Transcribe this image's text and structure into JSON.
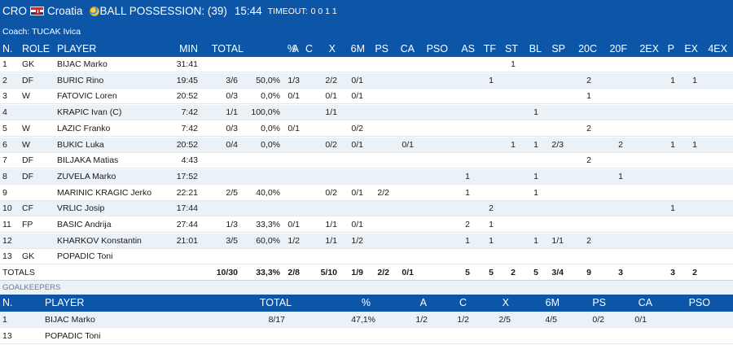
{
  "topbar": {
    "team_code": "CRO",
    "team_name": "Croatia",
    "possession_label": "BALL POSSESSION: (39)",
    "clock": "15:44",
    "timeout_label": "TIMEOUT:",
    "timeout_values": "0 0 1 1",
    "flag_icon": "croatia-flag-icon",
    "ball_icon": "ball-icon"
  },
  "coach": "Coach: TUCAK Ivica",
  "columns": [
    "N.",
    "ROLE",
    "PLAYER",
    "MIN",
    "TOTAL",
    "%",
    "A",
    "C",
    "X",
    "6M",
    "PS",
    "CA",
    "PSO",
    "AS",
    "TF",
    "ST",
    "BL",
    "SP",
    "20C",
    "20F",
    "2EX",
    "P",
    "EX",
    "4EX"
  ],
  "players": [
    {
      "n": "1",
      "role": "GK",
      "name": "BIJAC Marko",
      "min": "31:41",
      "total": "",
      "pct": "",
      "a": "",
      "c": "",
      "x": "",
      "m6": "",
      "ps": "",
      "ca": "",
      "pso": "",
      "as": "",
      "tf": "",
      "st": "1",
      "bl": "",
      "sp": "",
      "c20": "",
      "f20": "",
      "ex2": "",
      "p": "",
      "ex": "",
      "ex4": ""
    },
    {
      "n": "2",
      "role": "DF",
      "name": "BURIC Rino",
      "min": "19:45",
      "total": "3/6",
      "pct": "50,0%",
      "a": "1/3",
      "c": "",
      "x": "2/2",
      "m6": "0/1",
      "ps": "",
      "ca": "",
      "pso": "",
      "as": "",
      "tf": "1",
      "st": "",
      "bl": "",
      "sp": "",
      "c20": "2",
      "f20": "",
      "ex2": "",
      "p": "1",
      "ex": "1",
      "ex4": ""
    },
    {
      "n": "3",
      "role": "W",
      "name": "FATOVIC Loren",
      "min": "20:52",
      "total": "0/3",
      "pct": "0,0%",
      "a": "0/1",
      "c": "",
      "x": "0/1",
      "m6": "0/1",
      "ps": "",
      "ca": "",
      "pso": "",
      "as": "",
      "tf": "",
      "st": "",
      "bl": "",
      "sp": "",
      "c20": "1",
      "f20": "",
      "ex2": "",
      "p": "",
      "ex": "",
      "ex4": ""
    },
    {
      "n": "4",
      "role": "",
      "name": "KRAPIC Ivan (C)",
      "min": "7:42",
      "total": "1/1",
      "pct": "100,0%",
      "a": "",
      "c": "",
      "x": "1/1",
      "m6": "",
      "ps": "",
      "ca": "",
      "pso": "",
      "as": "",
      "tf": "",
      "st": "",
      "bl": "1",
      "sp": "",
      "c20": "",
      "f20": "",
      "ex2": "",
      "p": "",
      "ex": "",
      "ex4": ""
    },
    {
      "n": "5",
      "role": "W",
      "name": "LAZIC Franko",
      "min": "7:42",
      "total": "0/3",
      "pct": "0,0%",
      "a": "0/1",
      "c": "",
      "x": "",
      "m6": "0/2",
      "ps": "",
      "ca": "",
      "pso": "",
      "as": "",
      "tf": "",
      "st": "",
      "bl": "",
      "sp": "",
      "c20": "2",
      "f20": "",
      "ex2": "",
      "p": "",
      "ex": "",
      "ex4": ""
    },
    {
      "n": "6",
      "role": "W",
      "name": "BUKIC Luka",
      "min": "20:52",
      "total": "0/4",
      "pct": "0,0%",
      "a": "",
      "c": "",
      "x": "0/2",
      "m6": "0/1",
      "ps": "",
      "ca": "0/1",
      "pso": "",
      "as": "",
      "tf": "",
      "st": "1",
      "bl": "1",
      "sp": "2/3",
      "c20": "",
      "f20": "2",
      "ex2": "",
      "p": "1",
      "ex": "1",
      "ex4": ""
    },
    {
      "n": "7",
      "role": "DF",
      "name": "BILJAKA Matias",
      "min": "4:43",
      "total": "",
      "pct": "",
      "a": "",
      "c": "",
      "x": "",
      "m6": "",
      "ps": "",
      "ca": "",
      "pso": "",
      "as": "",
      "tf": "",
      "st": "",
      "bl": "",
      "sp": "",
      "c20": "2",
      "f20": "",
      "ex2": "",
      "p": "",
      "ex": "",
      "ex4": ""
    },
    {
      "n": "8",
      "role": "DF",
      "name": "ZUVELA Marko",
      "min": "17:52",
      "total": "",
      "pct": "",
      "a": "",
      "c": "",
      "x": "",
      "m6": "",
      "ps": "",
      "ca": "",
      "pso": "",
      "as": "1",
      "tf": "",
      "st": "",
      "bl": "1",
      "sp": "",
      "c20": "",
      "f20": "1",
      "ex2": "",
      "p": "",
      "ex": "",
      "ex4": ""
    },
    {
      "n": "9",
      "role": "",
      "name": "MARINIC KRAGIC Jerko",
      "min": "22:21",
      "total": "2/5",
      "pct": "40,0%",
      "a": "",
      "c": "",
      "x": "0/2",
      "m6": "0/1",
      "ps": "2/2",
      "ca": "",
      "pso": "",
      "as": "1",
      "tf": "",
      "st": "",
      "bl": "1",
      "sp": "",
      "c20": "",
      "f20": "",
      "ex2": "",
      "p": "",
      "ex": "",
      "ex4": ""
    },
    {
      "n": "10",
      "role": "CF",
      "name": "VRLIC Josip",
      "min": "17:44",
      "total": "",
      "pct": "",
      "a": "",
      "c": "",
      "x": "",
      "m6": "",
      "ps": "",
      "ca": "",
      "pso": "",
      "as": "",
      "tf": "2",
      "st": "",
      "bl": "",
      "sp": "",
      "c20": "",
      "f20": "",
      "ex2": "",
      "p": "1",
      "ex": "",
      "ex4": ""
    },
    {
      "n": "11",
      "role": "FP",
      "name": "BASIC Andrija",
      "min": "27:44",
      "total": "1/3",
      "pct": "33,3%",
      "a": "0/1",
      "c": "",
      "x": "1/1",
      "m6": "0/1",
      "ps": "",
      "ca": "",
      "pso": "",
      "as": "2",
      "tf": "1",
      "st": "",
      "bl": "",
      "sp": "",
      "c20": "",
      "f20": "",
      "ex2": "",
      "p": "",
      "ex": "",
      "ex4": ""
    },
    {
      "n": "12",
      "role": "",
      "name": "KHARKOV Konstantin",
      "min": "21:01",
      "total": "3/5",
      "pct": "60,0%",
      "a": "1/2",
      "c": "",
      "x": "1/1",
      "m6": "1/2",
      "ps": "",
      "ca": "",
      "pso": "",
      "as": "1",
      "tf": "1",
      "st": "",
      "bl": "1",
      "sp": "1/1",
      "c20": "2",
      "f20": "",
      "ex2": "",
      "p": "",
      "ex": "",
      "ex4": ""
    },
    {
      "n": "13",
      "role": "GK",
      "name": "POPADIC Toni",
      "min": "",
      "total": "",
      "pct": "",
      "a": "",
      "c": "",
      "x": "",
      "m6": "",
      "ps": "",
      "ca": "",
      "pso": "",
      "as": "",
      "tf": "",
      "st": "",
      "bl": "",
      "sp": "",
      "c20": "",
      "f20": "",
      "ex2": "",
      "p": "",
      "ex": "",
      "ex4": ""
    }
  ],
  "totals": {
    "label": "TOTALS",
    "total": "10/30",
    "pct": "33,3%",
    "a": "2/8",
    "x": "5/10",
    "m6": "1/9",
    "ps": "2/2",
    "ca": "0/1",
    "as": "5",
    "tf": "5",
    "st": "2",
    "bl": "5",
    "sp": "3/4",
    "c20": "9",
    "f20": "3",
    "p": "3",
    "ex": "2"
  },
  "goalkeepers": {
    "title": "GOALKEEPERS",
    "columns": [
      "N.",
      "PLAYER",
      "TOTAL",
      "%",
      "A",
      "C",
      "X",
      "6M",
      "PS",
      "CA",
      "PSO"
    ],
    "rows": [
      {
        "n": "1",
        "name": "BIJAC Marko",
        "total": "8/17",
        "pct": "47,1%",
        "a": "1/2",
        "c": "1/2",
        "x": "2/5",
        "m6": "4/5",
        "ps": "0/2",
        "ca": "0/1",
        "pso": ""
      },
      {
        "n": "13",
        "name": "POPADIC Toni",
        "total": "",
        "pct": "",
        "a": "",
        "c": "",
        "x": "",
        "m6": "",
        "ps": "",
        "ca": "",
        "pso": ""
      }
    ]
  },
  "colors": {
    "header_blue": "#0d55a6",
    "row_alt": "#eaf1f7"
  }
}
